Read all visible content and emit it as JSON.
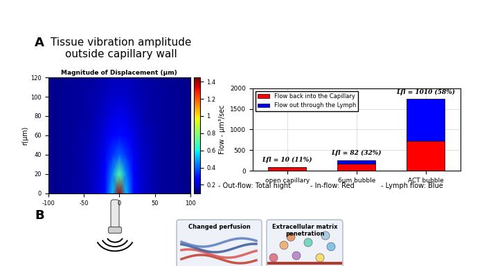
{
  "panel_labels": [
    "A",
    "B"
  ],
  "title": "Tissue vibration amplitude\noutside capillary wall",
  "chart_data": [
    {
      "type": "heatmap",
      "title": "Magnitude of Displacement (µm)",
      "y_label": "r(µm)",
      "x": [
        -100,
        -90,
        -80,
        -70,
        -60,
        -50,
        -40,
        -30,
        -20,
        -10,
        0,
        10,
        20,
        30,
        40,
        50,
        60,
        70,
        80,
        90,
        100
      ],
      "y": [
        0,
        20,
        40,
        60,
        80,
        100,
        120
      ],
      "cells": [
        [
          0.12,
          0.12,
          0.13,
          0.13,
          0.14,
          0.15,
          0.17,
          0.21,
          0.28,
          0.51,
          1.4,
          0.51,
          0.28,
          0.21,
          0.17,
          0.15,
          0.14,
          0.13,
          0.13,
          0.12,
          0.12
        ],
        [
          0.12,
          0.12,
          0.13,
          0.13,
          0.14,
          0.15,
          0.17,
          0.2,
          0.27,
          0.44,
          0.7,
          0.44,
          0.27,
          0.2,
          0.17,
          0.15,
          0.14,
          0.13,
          0.13,
          0.12,
          0.12
        ],
        [
          0.12,
          0.12,
          0.13,
          0.13,
          0.14,
          0.15,
          0.17,
          0.19,
          0.24,
          0.33,
          0.4,
          0.33,
          0.24,
          0.19,
          0.17,
          0.15,
          0.14,
          0.13,
          0.13,
          0.12,
          0.12
        ],
        [
          0.12,
          0.12,
          0.13,
          0.13,
          0.14,
          0.15,
          0.16,
          0.18,
          0.22,
          0.26,
          0.28,
          0.26,
          0.22,
          0.18,
          0.16,
          0.15,
          0.14,
          0.13,
          0.13,
          0.12,
          0.12
        ],
        [
          0.12,
          0.12,
          0.13,
          0.13,
          0.14,
          0.14,
          0.15,
          0.17,
          0.19,
          0.22,
          0.23,
          0.22,
          0.19,
          0.17,
          0.15,
          0.14,
          0.14,
          0.13,
          0.13,
          0.12,
          0.12
        ],
        [
          0.12,
          0.12,
          0.13,
          0.13,
          0.14,
          0.14,
          0.15,
          0.16,
          0.17,
          0.19,
          0.19,
          0.19,
          0.17,
          0.16,
          0.15,
          0.14,
          0.14,
          0.13,
          0.13,
          0.12,
          0.12
        ],
        [
          0.12,
          0.12,
          0.12,
          0.13,
          0.13,
          0.14,
          0.14,
          0.15,
          0.16,
          0.17,
          0.17,
          0.17,
          0.16,
          0.15,
          0.14,
          0.14,
          0.13,
          0.13,
          0.12,
          0.12,
          0.12
        ]
      ],
      "xlim": [
        -100,
        100
      ],
      "xticks": [
        -100,
        -50,
        0,
        50,
        100
      ],
      "ylim": [
        0,
        120
      ],
      "yticks": [
        0,
        20,
        40,
        60,
        80,
        100,
        120
      ],
      "colorbar": {
        "range": [
          0.1,
          1.45
        ],
        "ticks": [
          0.2,
          0.4,
          0.6,
          0.8,
          1,
          1.2,
          1.4
        ]
      }
    },
    {
      "type": "bar",
      "stacked": true,
      "y_label": "Flow - µm³/sec",
      "categories": [
        "open capillary",
        "6µm bubble",
        "ACT bubble"
      ],
      "series": [
        {
          "name": "Flow back into the Capillary",
          "color": "#ff0000",
          "values": [
            81,
            174,
            731
          ]
        },
        {
          "name": "Flow out through the Lymph",
          "color": "#0000ff",
          "values": [
            10,
            82,
            1010
          ]
        }
      ],
      "annotations": [
        "Lfl = 10 (11%)",
        "Lfl = 82 (32%)",
        "Lfl = 1010 (58%)"
      ],
      "ylim": [
        0,
        2000
      ],
      "yticks": [
        0,
        500,
        1000,
        1500,
        2000
      ],
      "grid": true,
      "legend": "upper left",
      "notes": [
        "- Out-flow: Total hight",
        "- In-flow: Red",
        "- Lymph flow: Blue"
      ]
    }
  ],
  "diagram": {
    "boxes": [
      "Changed perfusion",
      "Extracellular matrix\npenetration"
    ]
  }
}
